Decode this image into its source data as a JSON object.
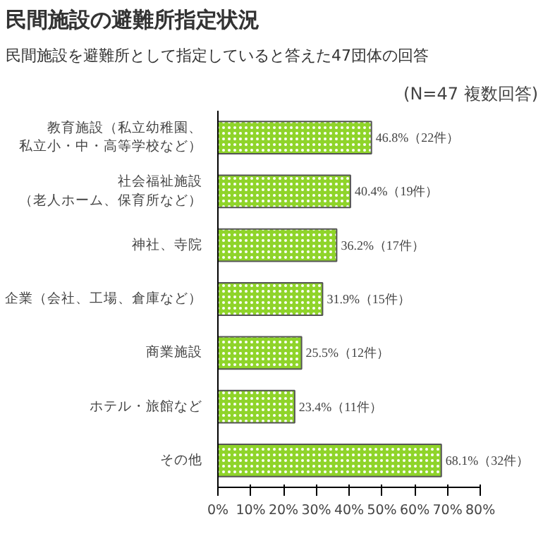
{
  "chart_data": {
    "type": "bar",
    "orientation": "horizontal",
    "title": "民間施設の避難所指定状況",
    "subtitle": "民間施設を避難所として指定していると答えた47団体の回答",
    "annotations": [
      "(N=47 複数回答)"
    ],
    "categories": [
      "教育施設（私立幼稚園、私立小・中・高等学校など）",
      "社会福祉施設（老人ホーム、保育所など）",
      "神社、寺院",
      "企業（会社、工場、倉庫など）",
      "商業施設",
      "ホテル・旅館など",
      "その他"
    ],
    "values": [
      46.8,
      40.4,
      36.2,
      31.9,
      25.5,
      23.4,
      68.1
    ],
    "value_labels": [
      "46.8%（22件）",
      "40.4%（19件）",
      "36.2%（17件）",
      "31.9%（15件）",
      "25.5%（12件）",
      "23.4%（11件）",
      "68.1%（32件）"
    ],
    "color": "#8fd42a",
    "xlim": [
      0,
      80
    ],
    "xticks": [
      {
        "value": 0,
        "label": "0%"
      },
      {
        "value": 10,
        "label": "10%"
      },
      {
        "value": 20,
        "label": "20%"
      },
      {
        "value": 30,
        "label": "30%"
      },
      {
        "value": 40,
        "label": "40%"
      },
      {
        "value": 50,
        "label": "50%"
      },
      {
        "value": 60,
        "label": "60%"
      },
      {
        "value": 70,
        "label": "70%"
      },
      {
        "value": 80,
        "label": "80%"
      }
    ],
    "grid": false
  }
}
